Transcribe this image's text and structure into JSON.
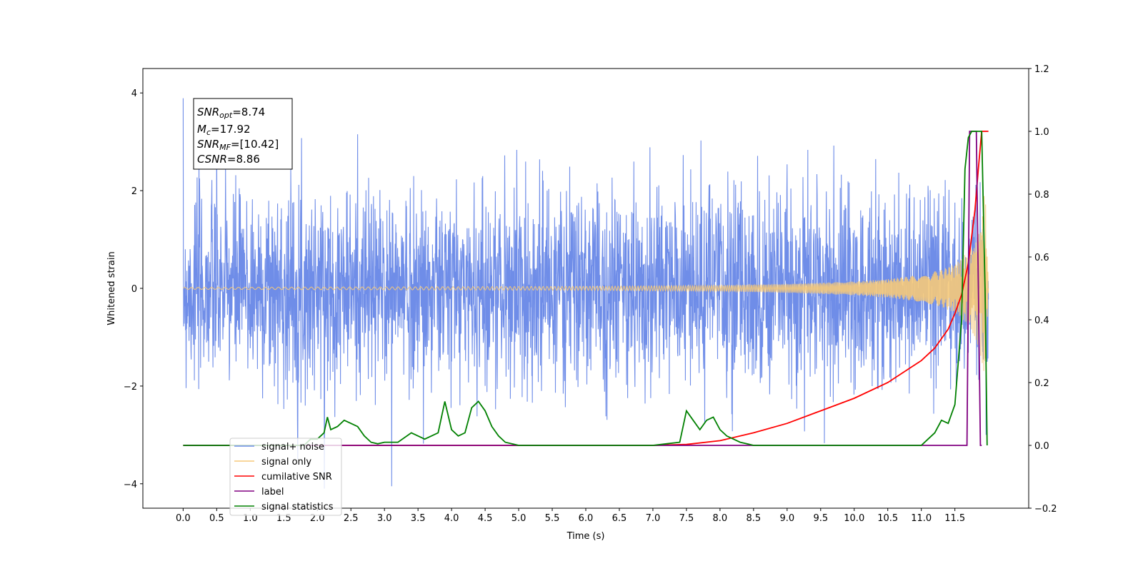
{
  "chart_data": {
    "type": "line",
    "xlabel": "Time (s)",
    "ylabel": "Whitened strain",
    "xlim": [
      -0.6,
      12.6
    ],
    "ylim": [
      -4.5,
      4.5
    ],
    "ylim_right": [
      -0.2,
      1.2
    ],
    "xticks": [
      0.0,
      0.5,
      1.0,
      1.5,
      2.0,
      2.5,
      3.0,
      3.5,
      4.0,
      4.5,
      5.0,
      5.5,
      6.0,
      6.5,
      7.0,
      7.5,
      8.0,
      8.5,
      9.0,
      9.5,
      10.0,
      10.5,
      11.0,
      11.5
    ],
    "xtick_labels": [
      "0.0",
      "0.5",
      "1.0",
      "1.5",
      "2.0",
      "2.5",
      "3.0",
      "3.5",
      "4.0",
      "4.5",
      "5.0",
      "5.5",
      "6.0",
      "6.5",
      "7.0",
      "7.5",
      "8.0",
      "8.5",
      "9.0",
      "9.5",
      "10.0",
      "10.5",
      "11.0",
      "11.5"
    ],
    "yticks_left": [
      -4,
      -2,
      0,
      2,
      4
    ],
    "ytick_labels_left": [
      "−4",
      "−2",
      "0",
      "2",
      "4"
    ],
    "yticks_right": [
      -0.2,
      0.0,
      0.2,
      0.4,
      0.6,
      0.8,
      1.0,
      1.2
    ],
    "ytick_labels_right": [
      "−0.2",
      "0.0",
      "0.2",
      "0.4",
      "0.6",
      "0.8",
      "1.0",
      "1.2"
    ],
    "grid": false,
    "legend_position": "lower-left",
    "series": [
      {
        "name": "signal+ noise",
        "axis": "left",
        "color": "#6f8de8",
        "noise_amplitude_range": [
          -4.1,
          4.1
        ],
        "x_range": [
          0.0,
          12.0
        ]
      },
      {
        "name": "signal only",
        "axis": "left",
        "color": "#f5c97a",
        "envelope_x": [
          0.0,
          6.0,
          8.0,
          9.0,
          10.0,
          10.5,
          11.0,
          11.3,
          11.5,
          11.7,
          11.8,
          11.9,
          11.95,
          12.0
        ],
        "envelope_y": [
          0.02,
          0.04,
          0.06,
          0.09,
          0.14,
          0.19,
          0.28,
          0.38,
          0.5,
          0.75,
          1.0,
          1.45,
          2.1,
          0.0
        ]
      },
      {
        "name": "cumilative SNR",
        "axis": "right",
        "color": "#ff0000",
        "x": [
          0.0,
          7.0,
          7.5,
          8.0,
          8.5,
          9.0,
          9.5,
          10.0,
          10.5,
          11.0,
          11.2,
          11.4,
          11.5,
          11.6,
          11.7,
          11.8,
          11.85,
          11.9,
          12.0
        ],
        "y": [
          0.0,
          0.0,
          0.003,
          0.015,
          0.04,
          0.07,
          0.11,
          0.15,
          0.2,
          0.27,
          0.31,
          0.37,
          0.42,
          0.48,
          0.58,
          0.75,
          0.88,
          1.0,
          1.0
        ]
      },
      {
        "name": "label",
        "axis": "right",
        "color": "#800080",
        "x": [
          0.0,
          11.68,
          11.72,
          11.82,
          11.88,
          11.9
        ],
        "y": [
          0.0,
          0.0,
          1.0,
          1.0,
          0.0,
          0.0
        ]
      },
      {
        "name": "signal statistics",
        "axis": "right",
        "color": "#008000",
        "x": [
          0.0,
          1.8,
          1.9,
          2.0,
          2.1,
          2.15,
          2.2,
          2.3,
          2.4,
          2.5,
          2.6,
          2.7,
          2.8,
          2.9,
          3.0,
          3.2,
          3.4,
          3.5,
          3.6,
          3.8,
          3.9,
          4.0,
          4.1,
          4.2,
          4.3,
          4.4,
          4.5,
          4.6,
          4.7,
          4.8,
          5.0,
          5.5,
          6.0,
          6.5,
          7.0,
          7.2,
          7.4,
          7.5,
          7.6,
          7.7,
          7.8,
          7.9,
          8.0,
          8.1,
          8.2,
          8.3,
          8.4,
          8.5,
          8.7,
          9.0,
          10.0,
          11.0,
          11.1,
          11.2,
          11.3,
          11.4,
          11.5,
          11.6,
          11.65,
          11.7,
          11.75,
          11.8,
          11.9,
          11.95,
          11.98
        ],
        "y": [
          0.0,
          0.0,
          0.02,
          0.02,
          0.04,
          0.09,
          0.05,
          0.06,
          0.08,
          0.07,
          0.06,
          0.03,
          0.01,
          0.005,
          0.01,
          0.01,
          0.04,
          0.03,
          0.02,
          0.04,
          0.14,
          0.05,
          0.03,
          0.04,
          0.12,
          0.14,
          0.11,
          0.06,
          0.03,
          0.01,
          0.0,
          0.0,
          0.0,
          0.0,
          0.0,
          0.005,
          0.01,
          0.11,
          0.08,
          0.05,
          0.08,
          0.09,
          0.05,
          0.03,
          0.02,
          0.01,
          0.005,
          0.0,
          0.0,
          0.0,
          0.0,
          0.0,
          0.02,
          0.04,
          0.08,
          0.07,
          0.13,
          0.4,
          0.88,
          0.98,
          1.0,
          1.0,
          1.0,
          0.5,
          0.0
        ]
      }
    ],
    "annotation": {
      "lines": [
        {
          "main": "SNR",
          "sub": "opt",
          "value": "=8.74"
        },
        {
          "main": "M",
          "sub": "c",
          "value": "=17.92"
        },
        {
          "main": "SNR",
          "sub": "MF",
          "value": "=[10.42]"
        },
        {
          "main": "CSNR",
          "sub": "",
          "value": "=8.86"
        }
      ]
    }
  }
}
